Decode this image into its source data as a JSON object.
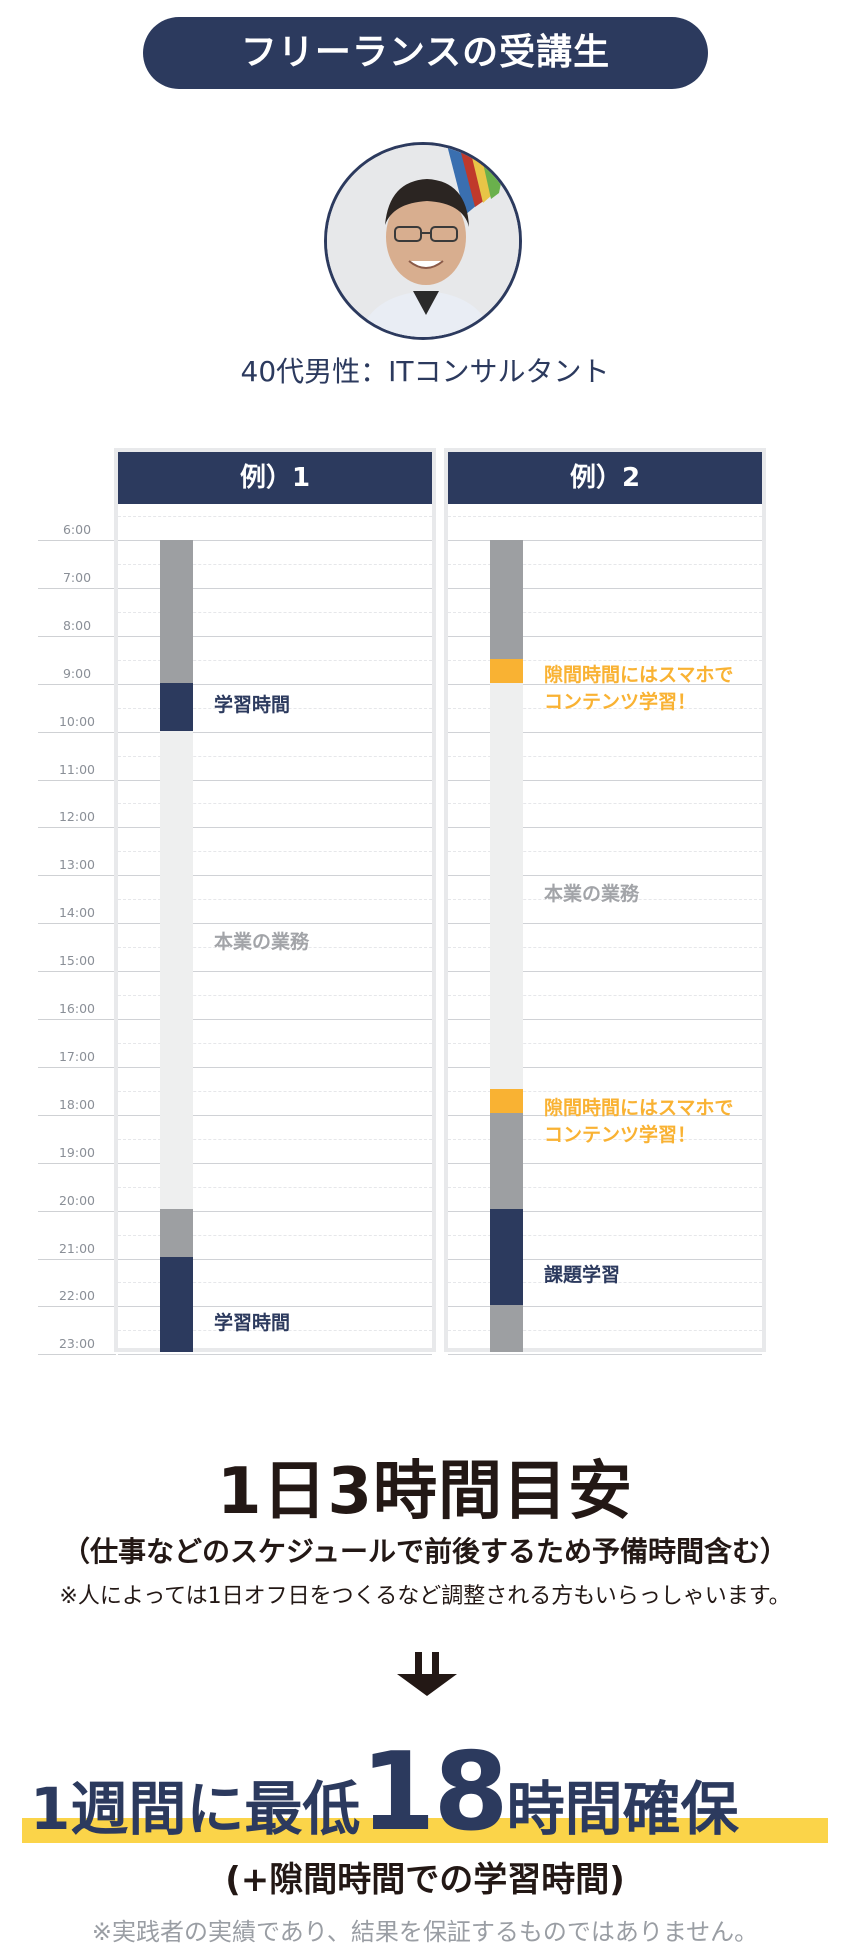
{
  "header": {
    "title": "フリーランスの受講生"
  },
  "person": {
    "label": "40代男性：ITコンサルタント"
  },
  "schedule": {
    "times": [
      "6:00",
      "7:00",
      "8:00",
      "9:00",
      "10:00",
      "11:00",
      "12:00",
      "13:00",
      "14:00",
      "15:00",
      "16:00",
      "17:00",
      "18:00",
      "19:00",
      "20:00",
      "21:00",
      "22:00",
      "23:00"
    ],
    "examples": [
      {
        "title": "例）1",
        "labels": {
          "study_morning": "学習時間",
          "work": "本業の業務",
          "study_night": "学習時間"
        }
      },
      {
        "title": "例）2",
        "labels": {
          "gap_morning_1": "隙間時間にはスマホで",
          "gap_morning_2": "コンテンツ学習！",
          "work": "本業の業務",
          "gap_evening_1": "隙間時間にはスマホで",
          "gap_evening_2": "コンテンツ学習！",
          "assignment": "課題学習"
        }
      }
    ]
  },
  "summary": {
    "headline": "1日3時間目安",
    "subline": "（仕事などのスケジュールで前後するため予備時間含む）",
    "note": "※人によっては1日オフ日をつくるなど調整される方もいらっしゃいます。",
    "result_prefix": "1週間に最低",
    "result_number": "18",
    "result_suffix": "時間確保",
    "result_sub": "(+隙間時間での学習時間)",
    "disclaimer": "※実践者の実績であり、結果を保証するものではありません。"
  },
  "colors": {
    "navy": "#2c3a5e",
    "gray_block": "#9d9fa2",
    "light_block": "#eeefef",
    "orange": "#f9b233",
    "yellow": "#fbd449"
  }
}
